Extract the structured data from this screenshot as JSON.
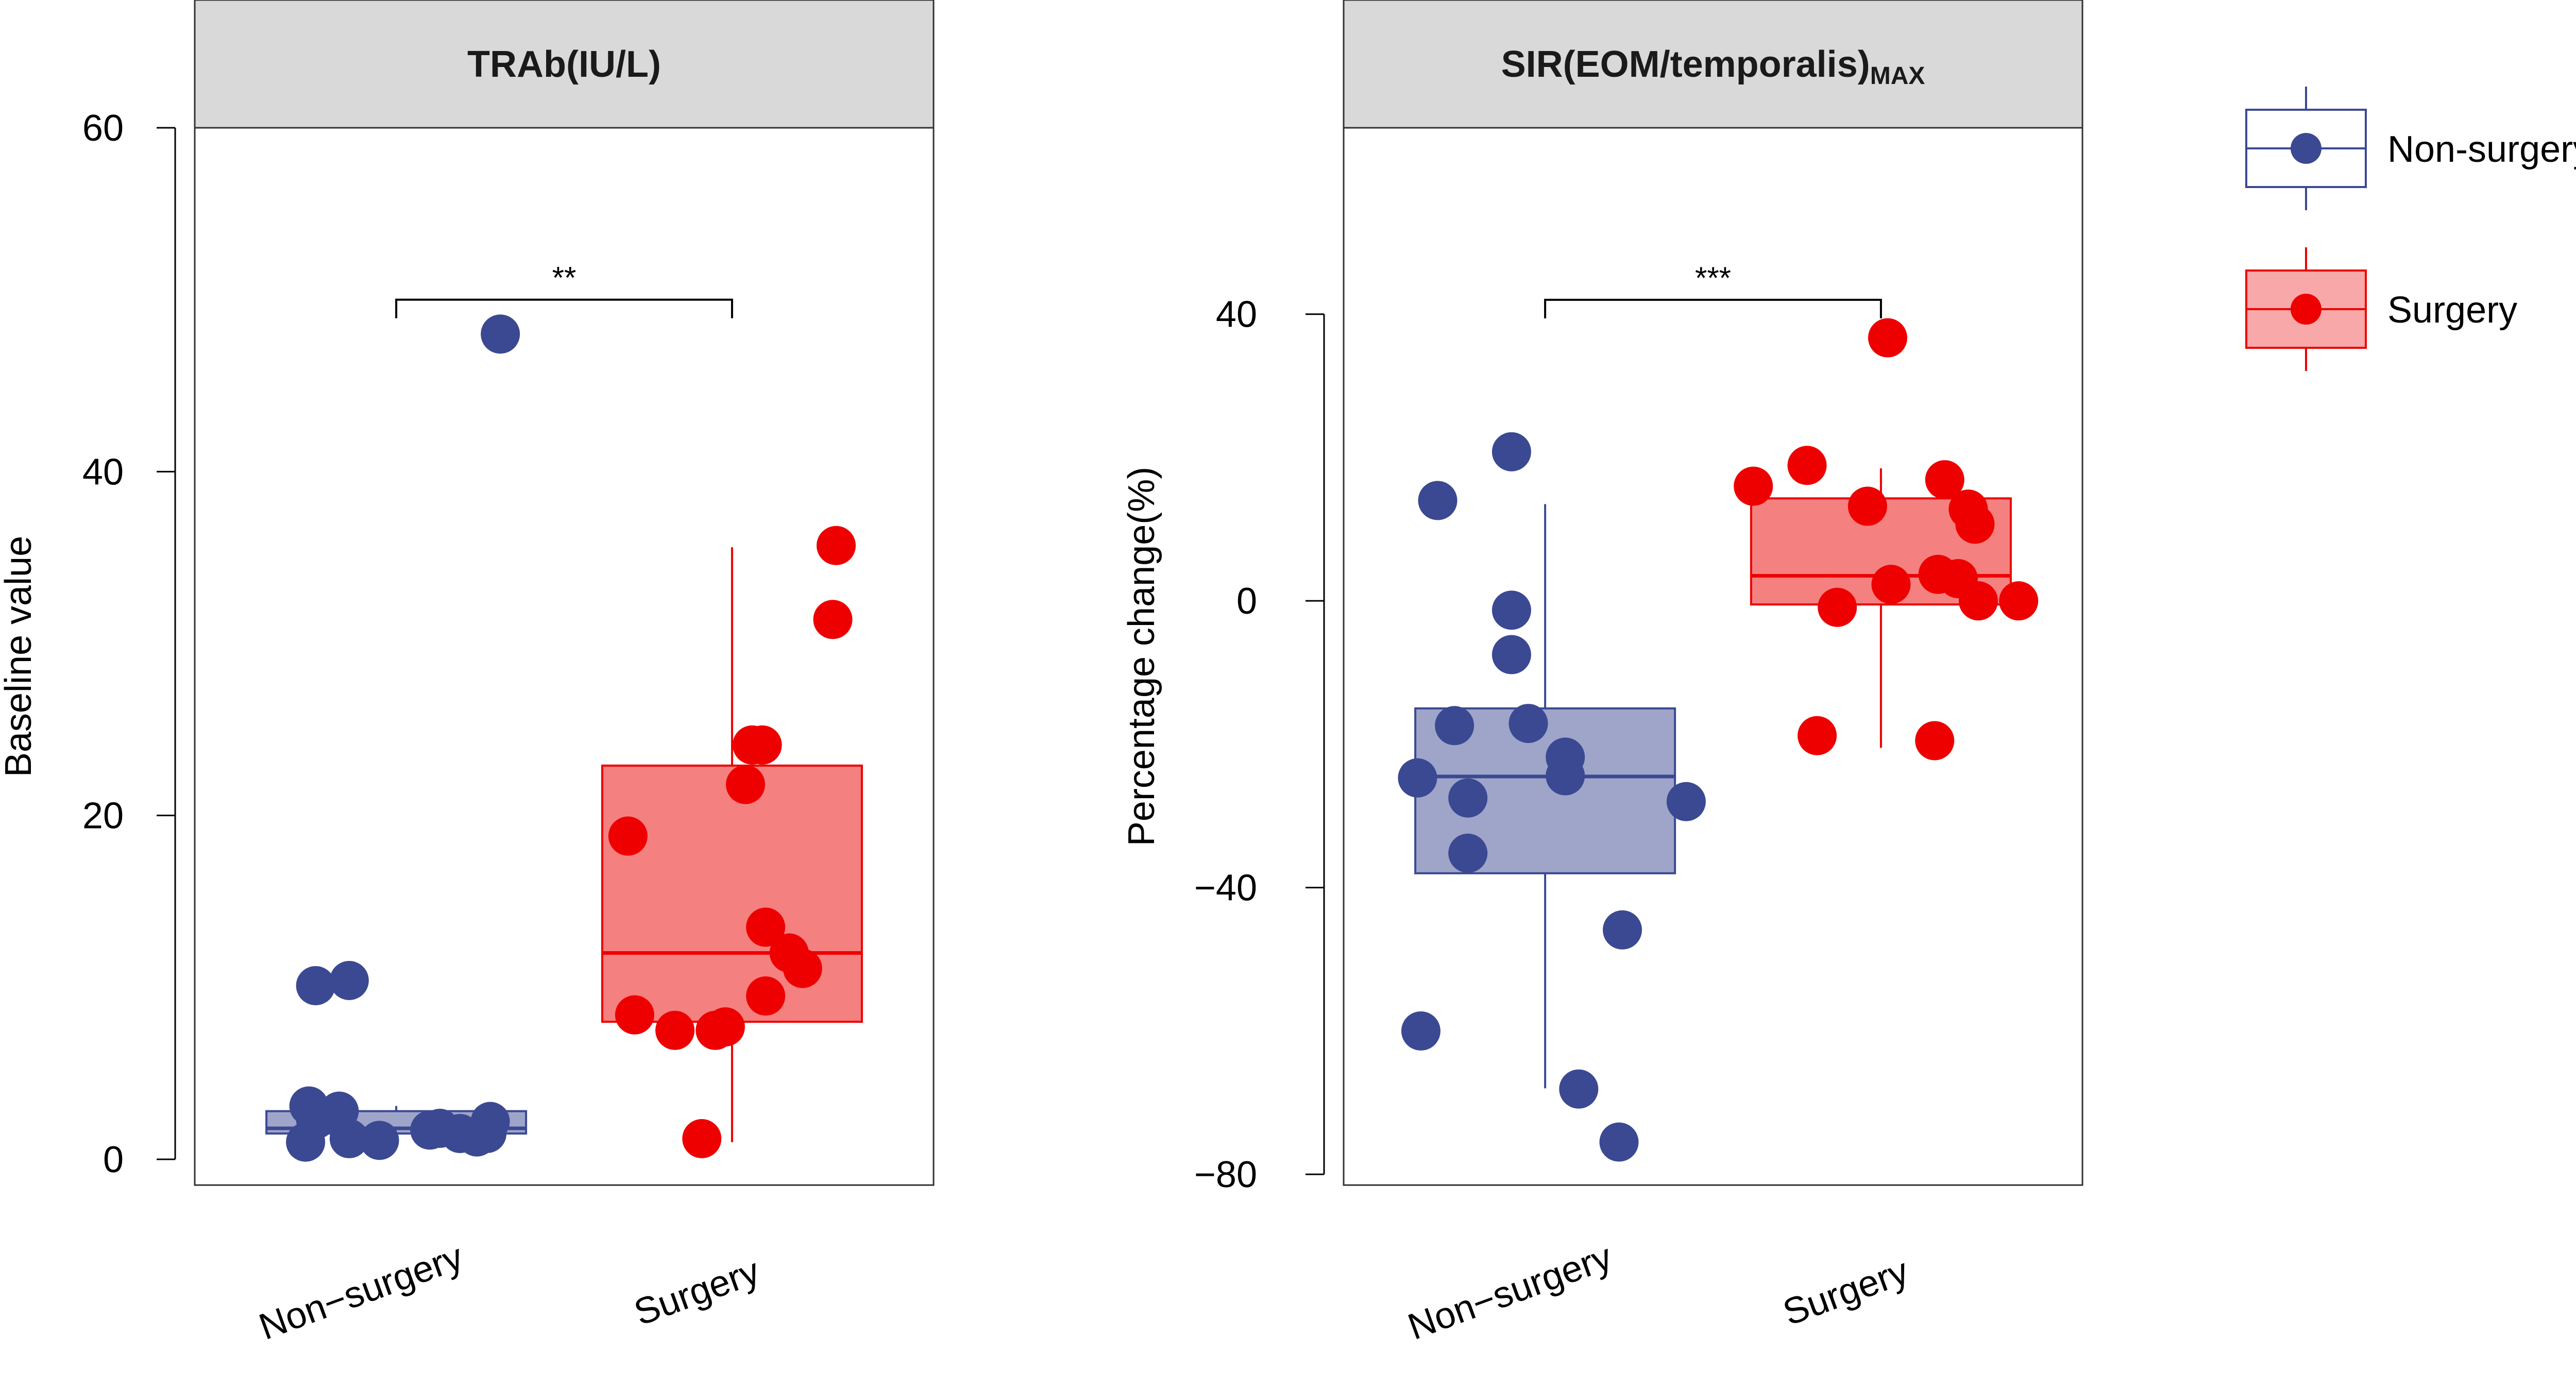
{
  "colors": {
    "non_surgery": "#3B4992",
    "non_surgery_fill": "#9EA5C9",
    "surgery": "#EE0000",
    "surgery_fill": "#F58080",
    "strip_fill": "#D9D9D9"
  },
  "legend": {
    "items": [
      {
        "label": "Non-surgery",
        "color_key": "non_surgery"
      },
      {
        "label": "Surgery",
        "color_key": "surgery"
      }
    ]
  },
  "chart_data": [
    {
      "type": "box",
      "title": "TRAb(IU/L)",
      "ylabel": "Baseline value",
      "xlabel": "",
      "ylim": [
        -1.5,
        60
      ],
      "yticks": [
        0,
        20,
        40,
        60
      ],
      "categories": [
        "Non−surgery",
        "Surgery"
      ],
      "significance": {
        "label": "**",
        "between": [
          0,
          1
        ],
        "y": 50
      },
      "series": [
        {
          "name": "Non-surgery",
          "color_key": "non_surgery",
          "box": {
            "q1": 1.5,
            "median": 1.8,
            "q3": 2.8,
            "whisker_low": 1.0,
            "whisker_high": 3.1
          },
          "points": [
            [
              0.73,
              1.0
            ],
            [
              0.74,
              3.1
            ],
            [
              0.76,
              2.3
            ],
            [
              0.76,
              10.1
            ],
            [
              0.86,
              10.4
            ],
            [
              0.83,
              2.8
            ],
            [
              0.86,
              1.2
            ],
            [
              0.95,
              1.1
            ],
            [
              1.1,
              1.7
            ],
            [
              1.13,
              1.8
            ],
            [
              1.19,
              1.5
            ],
            [
              1.24,
              1.3
            ],
            [
              1.27,
              1.5
            ],
            [
              1.28,
              2.2
            ],
            [
              1.31,
              48.0
            ]
          ]
        },
        {
          "name": "Surgery",
          "color_key": "surgery",
          "box": {
            "q1": 8.0,
            "median": 12.0,
            "q3": 22.9,
            "whisker_low": 1.0,
            "whisker_high": 35.6
          },
          "points": [
            [
              1.69,
              18.8
            ],
            [
              1.71,
              8.4
            ],
            [
              1.83,
              7.5
            ],
            [
              1.91,
              1.2
            ],
            [
              1.95,
              7.5
            ],
            [
              1.98,
              7.7
            ],
            [
              2.04,
              21.8
            ],
            [
              2.06,
              24.1
            ],
            [
              2.09,
              24.1
            ],
            [
              2.1,
              9.5
            ],
            [
              2.1,
              13.5
            ],
            [
              2.17,
              12.0
            ],
            [
              2.21,
              11.1
            ],
            [
              2.3,
              31.4
            ],
            [
              2.31,
              35.7
            ]
          ]
        }
      ]
    },
    {
      "type": "box",
      "title": "SIR(EOM/temporalis)",
      "title_sub": "MAX",
      "ylabel": "Percentage change(%)",
      "xlabel": "",
      "ylim": [
        -81.5,
        66
      ],
      "yticks": [
        40,
        0,
        -40,
        -80
      ],
      "categories": [
        "Non−surgery",
        "Surgery"
      ],
      "significance": {
        "label": "***",
        "between": [
          0,
          1
        ],
        "y": 42
      },
      "series": [
        {
          "name": "Non-surgery",
          "color_key": "non_surgery",
          "box": {
            "q1": -38.0,
            "median": -24.5,
            "q3": -15.0,
            "whisker_low": -68.0,
            "whisker_high": 13.5
          },
          "points": [
            [
              0.62,
              -24.7
            ],
            [
              0.63,
              -60.0
            ],
            [
              0.68,
              14.0
            ],
            [
              0.73,
              -17.4
            ],
            [
              0.77,
              -27.5
            ],
            [
              0.77,
              -35.2
            ],
            [
              0.9,
              20.8
            ],
            [
              0.9,
              -1.3
            ],
            [
              0.9,
              -7.5
            ],
            [
              0.95,
              -17.1
            ],
            [
              1.06,
              -21.8
            ],
            [
              1.06,
              -24.4
            ],
            [
              1.1,
              -68.1
            ],
            [
              1.22,
              -75.5
            ],
            [
              1.23,
              -45.9
            ],
            [
              1.42,
              -28.0
            ]
          ]
        },
        {
          "name": "Surgery",
          "color_key": "surgery",
          "box": {
            "q1": -0.5,
            "median": 3.5,
            "q3": 14.3,
            "whisker_low": -20.5,
            "whisker_high": 18.5
          },
          "points": [
            [
              1.62,
              16.0
            ],
            [
              1.78,
              18.9
            ],
            [
              1.81,
              -18.8
            ],
            [
              1.87,
              -0.9
            ],
            [
              1.96,
              13.2
            ],
            [
              2.03,
              2.3
            ],
            [
              2.02,
              36.7
            ],
            [
              2.16,
              -19.5
            ],
            [
              2.17,
              3.7
            ],
            [
              2.19,
              16.9
            ],
            [
              2.23,
              3.1
            ],
            [
              2.26,
              12.8
            ],
            [
              2.28,
              10.7
            ],
            [
              2.29,
              0.0
            ],
            [
              2.41,
              0.0
            ]
          ]
        }
      ]
    }
  ]
}
